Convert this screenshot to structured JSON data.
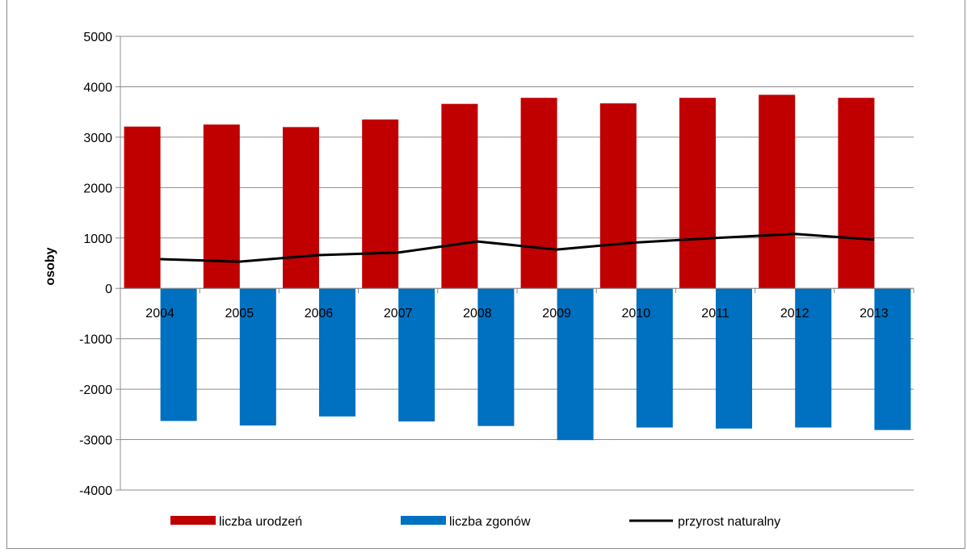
{
  "chart_data": {
    "type": "bar",
    "title": "",
    "xlabel": "",
    "ylabel": "osoby",
    "ylim": [
      -4000,
      5000
    ],
    "yticks": [
      5000,
      4000,
      3000,
      2000,
      1000,
      0,
      -1000,
      -2000,
      -3000,
      -4000
    ],
    "grid": true,
    "legend_position": "bottom",
    "categories": [
      "2004",
      "2005",
      "2006",
      "2007",
      "2008",
      "2009",
      "2010",
      "2011",
      "2012",
      "2013"
    ],
    "series": [
      {
        "name": "liczba urodzeń",
        "type": "bar",
        "color": "#c00000",
        "values": [
          3210,
          3250,
          3200,
          3350,
          3660,
          3780,
          3670,
          3780,
          3840,
          3780
        ]
      },
      {
        "name": "liczba zgonów",
        "type": "bar",
        "color": "#0070c0",
        "values": [
          -2630,
          -2720,
          -2540,
          -2640,
          -2730,
          -3010,
          -2760,
          -2780,
          -2760,
          -2810
        ]
      },
      {
        "name": "przyrost naturalny",
        "type": "line",
        "color": "#000000",
        "values": [
          580,
          530,
          660,
          710,
          930,
          770,
          910,
          1000,
          1080,
          970
        ]
      }
    ]
  }
}
